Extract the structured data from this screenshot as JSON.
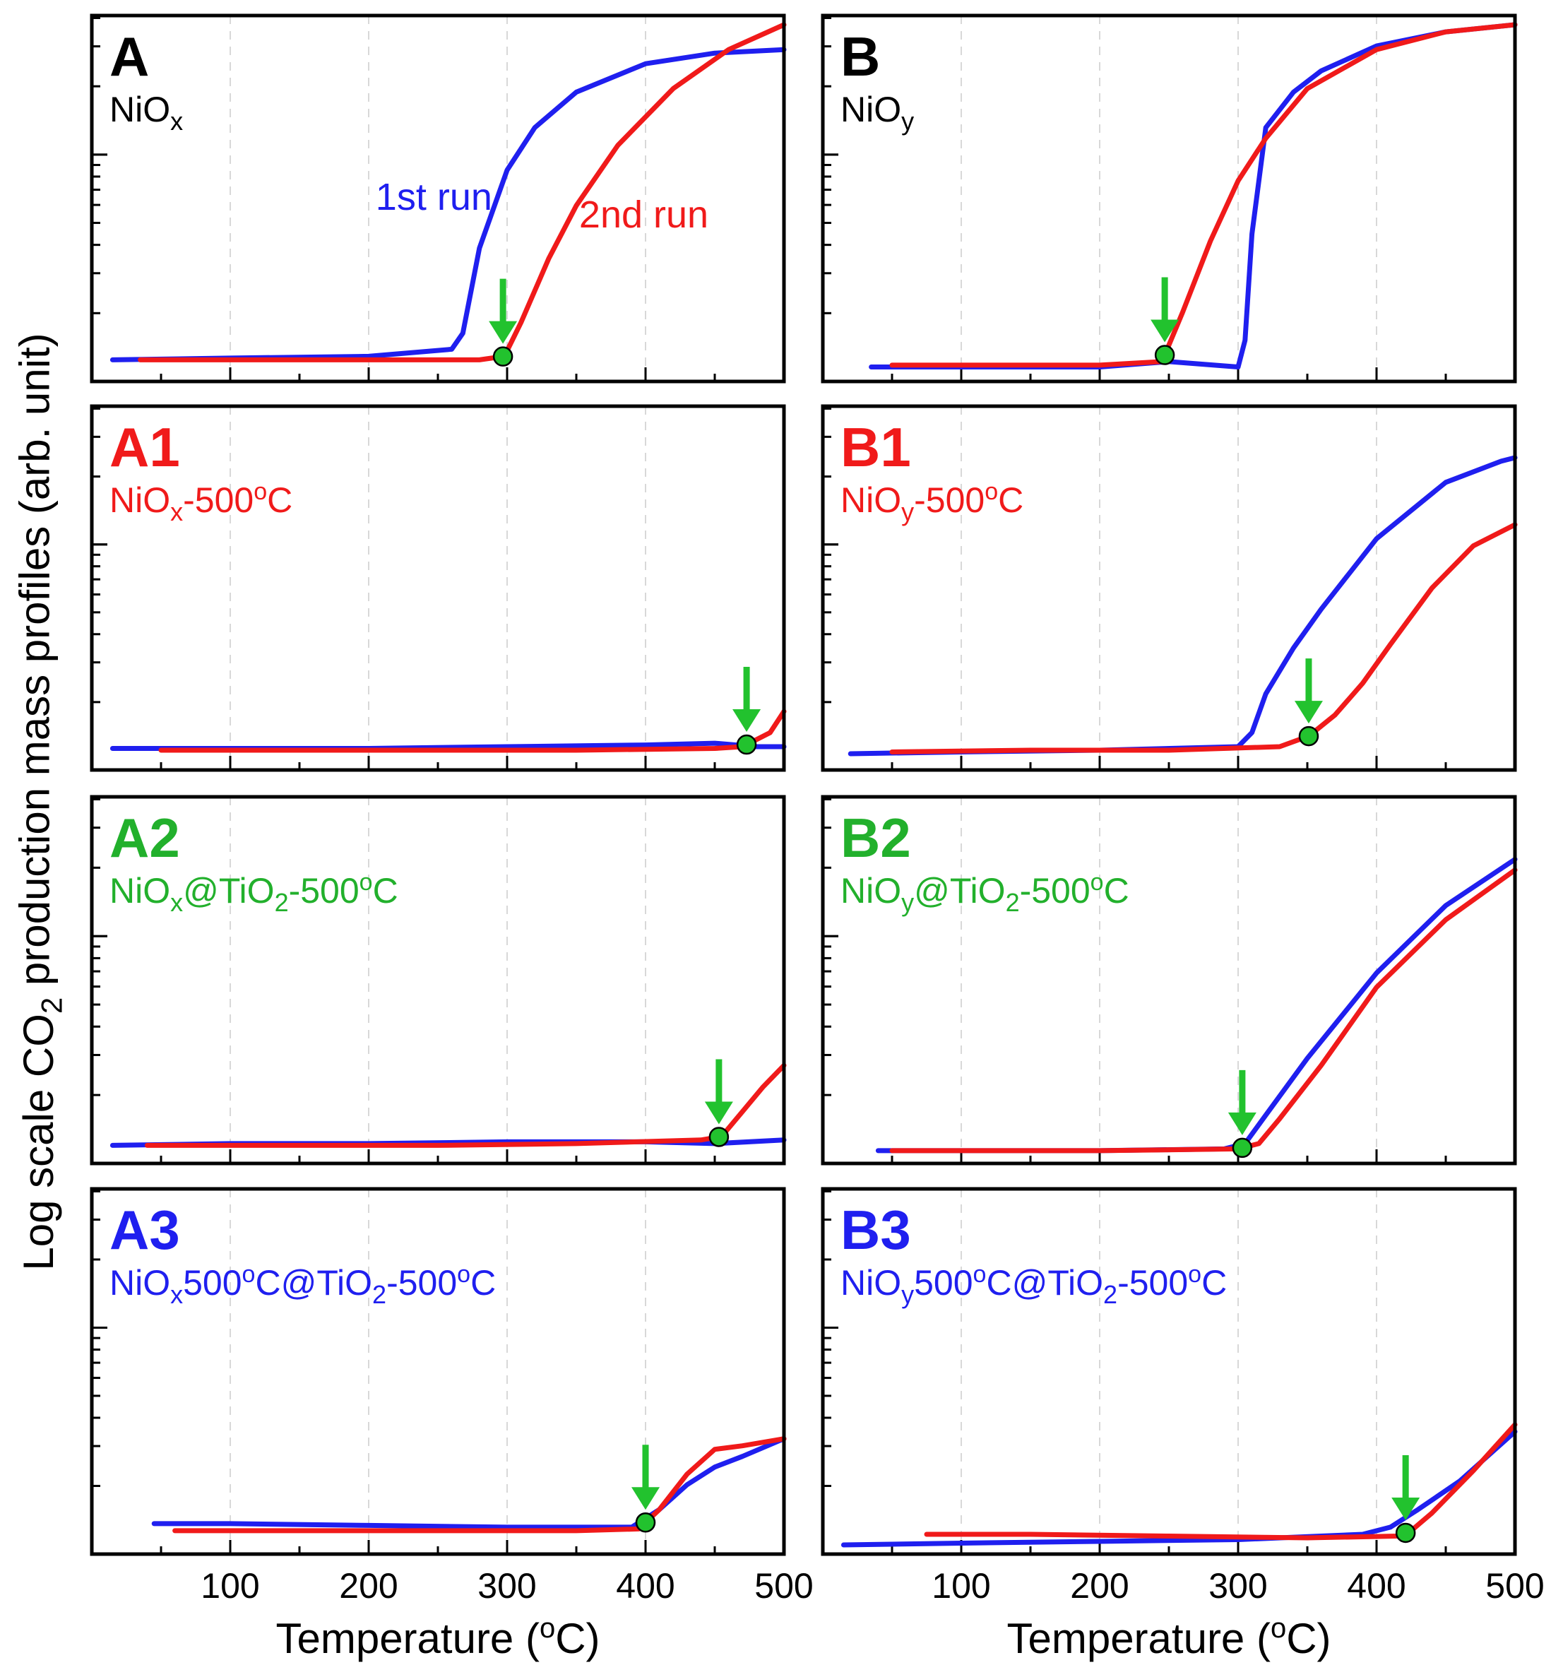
{
  "colors": {
    "run1": "#1f1fef",
    "run2": "#f01a1a",
    "marker": "#22c22e",
    "label_black": "#000000",
    "label_red": "#f01a1a",
    "label_green": "#22b02c",
    "label_blue": "#1f1fef"
  },
  "figure": {
    "ylabel": "Log scale CO₂ production mass profiles (arb. unit)",
    "xlabel": "Temperature (ºC)",
    "xlim": [
      0,
      500
    ],
    "xticks": [
      100,
      200,
      300,
      400,
      500
    ]
  },
  "legend": {
    "run1": "1st run",
    "run2": "2nd run"
  },
  "chart_data": [
    {
      "id": "A",
      "type": "line",
      "letter": "A",
      "sample": "NiOx",
      "label_color": "label_black",
      "ylim": [
        0,
        1
      ],
      "onset_marker_c": 297,
      "series": [
        {
          "name": "1st run",
          "color_key": "run1",
          "x": [
            15,
            100,
            200,
            260,
            268,
            280,
            300,
            320,
            350,
            400,
            450,
            500
          ],
          "y": [
            0.045,
            0.05,
            0.055,
            0.075,
            0.12,
            0.36,
            0.58,
            0.7,
            0.8,
            0.88,
            0.91,
            0.92
          ]
        },
        {
          "name": "2nd run",
          "color_key": "run2",
          "x": [
            35,
            100,
            200,
            280,
            298,
            310,
            330,
            350,
            380,
            420,
            460,
            500
          ],
          "y": [
            0.045,
            0.045,
            0.045,
            0.045,
            0.055,
            0.15,
            0.33,
            0.48,
            0.65,
            0.81,
            0.92,
            0.99
          ]
        }
      ]
    },
    {
      "id": "B",
      "type": "line",
      "letter": "B",
      "sample": "NiOy",
      "label_color": "label_black",
      "ylim": [
        0,
        1
      ],
      "onset_marker_c": 247,
      "series": [
        {
          "name": "1st run",
          "color_key": "run1",
          "x": [
            35,
            100,
            200,
            250,
            300,
            305,
            310,
            320,
            340,
            360,
            400,
            450,
            500
          ],
          "y": [
            0.025,
            0.025,
            0.025,
            0.04,
            0.025,
            0.1,
            0.4,
            0.7,
            0.8,
            0.86,
            0.93,
            0.97,
            0.99
          ]
        },
        {
          "name": "2nd run",
          "color_key": "run2",
          "x": [
            50,
            100,
            200,
            245,
            260,
            280,
            300,
            320,
            350,
            400,
            450,
            500
          ],
          "y": [
            0.03,
            0.03,
            0.03,
            0.04,
            0.18,
            0.38,
            0.55,
            0.67,
            0.81,
            0.92,
            0.97,
            0.99
          ]
        }
      ]
    },
    {
      "id": "A1",
      "type": "line",
      "letter": "A1",
      "sample": "NiOx-500ºC",
      "label_color": "label_red",
      "ylim": [
        0,
        1
      ],
      "onset_marker_c": 473,
      "series": [
        {
          "name": "1st run",
          "color_key": "run1",
          "x": [
            15,
            100,
            200,
            300,
            400,
            450,
            480,
            500
          ],
          "y": [
            0.045,
            0.045,
            0.045,
            0.05,
            0.055,
            0.06,
            0.05,
            0.05
          ]
        },
        {
          "name": "2nd run",
          "color_key": "run2",
          "x": [
            50,
            150,
            250,
            350,
            450,
            470,
            480,
            490,
            500
          ],
          "y": [
            0.04,
            0.04,
            0.04,
            0.04,
            0.045,
            0.05,
            0.07,
            0.09,
            0.15
          ]
        }
      ]
    },
    {
      "id": "B1",
      "type": "line",
      "letter": "B1",
      "sample": "NiOy-500ºC",
      "label_color": "label_red",
      "ylim": [
        0,
        1
      ],
      "onset_marker_c": 351,
      "series": [
        {
          "name": "1st run",
          "color_key": "run1",
          "x": [
            20,
            100,
            200,
            300,
            310,
            320,
            340,
            360,
            400,
            450,
            490,
            500
          ],
          "y": [
            0.03,
            0.035,
            0.04,
            0.05,
            0.09,
            0.2,
            0.33,
            0.44,
            0.64,
            0.8,
            0.86,
            0.87
          ]
        },
        {
          "name": "2nd run",
          "color_key": "run2",
          "x": [
            50,
            150,
            250,
            330,
            351,
            370,
            390,
            410,
            440,
            470,
            500
          ],
          "y": [
            0.035,
            0.04,
            0.04,
            0.05,
            0.08,
            0.14,
            0.23,
            0.34,
            0.5,
            0.62,
            0.68
          ]
        }
      ]
    },
    {
      "id": "A2",
      "type": "line",
      "letter": "A2",
      "sample": "NiOx@TiO2-500ºC",
      "label_color": "label_green",
      "ylim": [
        0,
        1
      ],
      "onset_marker_c": 453,
      "series": [
        {
          "name": "1st run",
          "color_key": "run1",
          "x": [
            15,
            100,
            200,
            300,
            400,
            450,
            500
          ],
          "y": [
            0.035,
            0.04,
            0.04,
            0.045,
            0.045,
            0.04,
            0.05
          ]
        },
        {
          "name": "2nd run",
          "color_key": "run2",
          "x": [
            40,
            150,
            250,
            350,
            440,
            455,
            470,
            485,
            500
          ],
          "y": [
            0.035,
            0.035,
            0.035,
            0.04,
            0.05,
            0.06,
            0.13,
            0.2,
            0.26
          ]
        }
      ]
    },
    {
      "id": "B2",
      "type": "line",
      "letter": "B2",
      "sample": "NiOy@TiO2-500ºC",
      "label_color": "label_green",
      "ylim": [
        0,
        1
      ],
      "onset_marker_c": 303,
      "series": [
        {
          "name": "1st run",
          "color_key": "run1",
          "x": [
            40,
            100,
            200,
            290,
            305,
            320,
            350,
            400,
            450,
            500
          ],
          "y": [
            0.02,
            0.02,
            0.02,
            0.025,
            0.04,
            0.12,
            0.28,
            0.52,
            0.71,
            0.84
          ]
        },
        {
          "name": "2nd run",
          "color_key": "run2",
          "x": [
            50,
            100,
            200,
            300,
            315,
            330,
            360,
            400,
            450,
            500
          ],
          "y": [
            0.02,
            0.02,
            0.02,
            0.025,
            0.04,
            0.11,
            0.26,
            0.48,
            0.67,
            0.81
          ]
        }
      ]
    },
    {
      "id": "A3",
      "type": "line",
      "letter": "A3",
      "sample": "NiOx500ºC@TiO2-500ºC",
      "label_color": "label_blue",
      "ylim": [
        0,
        1
      ],
      "onset_marker_c": 400,
      "series": [
        {
          "name": "1st run",
          "color_key": "run1",
          "x": [
            45,
            100,
            200,
            300,
            390,
            410,
            430,
            450,
            470,
            500
          ],
          "y": [
            0.07,
            0.07,
            0.065,
            0.06,
            0.06,
            0.11,
            0.18,
            0.23,
            0.26,
            0.31
          ]
        },
        {
          "name": "2nd run",
          "color_key": "run2",
          "x": [
            60,
            150,
            250,
            350,
            395,
            410,
            430,
            450,
            470,
            500
          ],
          "y": [
            0.05,
            0.05,
            0.05,
            0.05,
            0.055,
            0.11,
            0.21,
            0.28,
            0.29,
            0.31
          ]
        }
      ]
    },
    {
      "id": "B3",
      "type": "line",
      "letter": "B3",
      "sample": "NiOy500ºC@TiO2-500ºC",
      "label_color": "label_blue",
      "ylim": [
        0,
        1
      ],
      "onset_marker_c": 421,
      "series": [
        {
          "name": "1st run",
          "color_key": "run1",
          "x": [
            15,
            100,
            200,
            300,
            390,
            410,
            430,
            460,
            500
          ],
          "y": [
            0.01,
            0.015,
            0.02,
            0.025,
            0.04,
            0.06,
            0.11,
            0.19,
            0.33
          ]
        },
        {
          "name": "2nd run",
          "color_key": "run2",
          "x": [
            75,
            150,
            250,
            350,
            415,
            425,
            440,
            470,
            500
          ],
          "y": [
            0.04,
            0.04,
            0.035,
            0.03,
            0.035,
            0.05,
            0.1,
            0.22,
            0.35
          ]
        }
      ]
    }
  ]
}
